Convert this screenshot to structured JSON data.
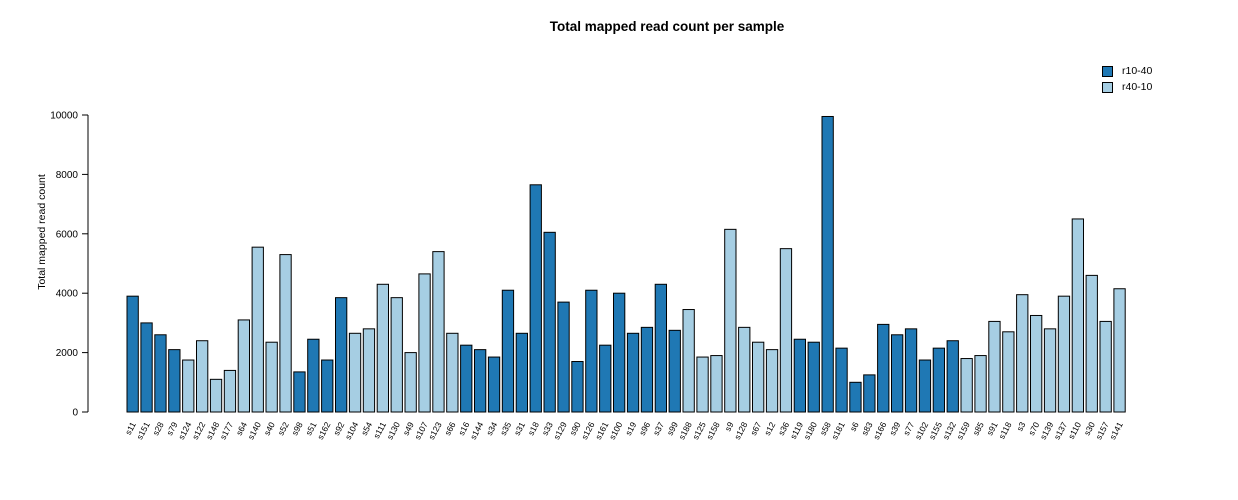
{
  "title": "Total mapped read count per sample",
  "chart_data": {
    "type": "bar",
    "title": "Total mapped read count per sample",
    "xlabel": "",
    "ylabel": "Total mapped read count",
    "ylim": [
      0,
      10000
    ],
    "yticks": [
      0,
      2000,
      4000,
      6000,
      8000,
      10000
    ],
    "grid": false,
    "legend_position": "top-right",
    "legend": [
      {
        "name": "r10-40",
        "color": "#1F78B4"
      },
      {
        "name": "r40-10",
        "color": "#A6CEE3"
      }
    ],
    "bar_border_color": "#000000",
    "bars": [
      {
        "label": "s11",
        "value": 3900,
        "group": "r10-40"
      },
      {
        "label": "s151",
        "value": 3000,
        "group": "r10-40"
      },
      {
        "label": "s28",
        "value": 2600,
        "group": "r10-40"
      },
      {
        "label": "s79",
        "value": 2100,
        "group": "r10-40"
      },
      {
        "label": "s124",
        "value": 1750,
        "group": "r40-10"
      },
      {
        "label": "s122",
        "value": 2400,
        "group": "r40-10"
      },
      {
        "label": "s148",
        "value": 1100,
        "group": "r40-10"
      },
      {
        "label": "s177",
        "value": 1400,
        "group": "r40-10"
      },
      {
        "label": "s64",
        "value": 3100,
        "group": "r40-10"
      },
      {
        "label": "s140",
        "value": 5550,
        "group": "r40-10"
      },
      {
        "label": "s40",
        "value": 2350,
        "group": "r40-10"
      },
      {
        "label": "s52",
        "value": 5300,
        "group": "r40-10"
      },
      {
        "label": "s98",
        "value": 1350,
        "group": "r10-40"
      },
      {
        "label": "s51",
        "value": 2450,
        "group": "r10-40"
      },
      {
        "label": "s162",
        "value": 1750,
        "group": "r10-40"
      },
      {
        "label": "s92",
        "value": 3850,
        "group": "r10-40"
      },
      {
        "label": "s104",
        "value": 2650,
        "group": "r40-10"
      },
      {
        "label": "s54",
        "value": 2800,
        "group": "r40-10"
      },
      {
        "label": "s111",
        "value": 4300,
        "group": "r40-10"
      },
      {
        "label": "s130",
        "value": 3850,
        "group": "r40-10"
      },
      {
        "label": "s49",
        "value": 2000,
        "group": "r40-10"
      },
      {
        "label": "s107",
        "value": 4650,
        "group": "r40-10"
      },
      {
        "label": "s123",
        "value": 5400,
        "group": "r40-10"
      },
      {
        "label": "s66",
        "value": 2650,
        "group": "r40-10"
      },
      {
        "label": "s16",
        "value": 2250,
        "group": "r10-40"
      },
      {
        "label": "s144",
        "value": 2100,
        "group": "r10-40"
      },
      {
        "label": "s34",
        "value": 1850,
        "group": "r10-40"
      },
      {
        "label": "s35",
        "value": 4100,
        "group": "r10-40"
      },
      {
        "label": "s31",
        "value": 2650,
        "group": "r10-40"
      },
      {
        "label": "s18",
        "value": 7650,
        "group": "r10-40"
      },
      {
        "label": "s33",
        "value": 6050,
        "group": "r10-40"
      },
      {
        "label": "s129",
        "value": 3700,
        "group": "r10-40"
      },
      {
        "label": "s90",
        "value": 1700,
        "group": "r10-40"
      },
      {
        "label": "s126",
        "value": 4100,
        "group": "r10-40"
      },
      {
        "label": "s161",
        "value": 2250,
        "group": "r10-40"
      },
      {
        "label": "s100",
        "value": 4000,
        "group": "r10-40"
      },
      {
        "label": "s19",
        "value": 2650,
        "group": "r10-40"
      },
      {
        "label": "s96",
        "value": 2850,
        "group": "r10-40"
      },
      {
        "label": "s37",
        "value": 4300,
        "group": "r10-40"
      },
      {
        "label": "s99",
        "value": 2750,
        "group": "r10-40"
      },
      {
        "label": "s188",
        "value": 3450,
        "group": "r40-10"
      },
      {
        "label": "s125",
        "value": 1850,
        "group": "r40-10"
      },
      {
        "label": "s158",
        "value": 1900,
        "group": "r40-10"
      },
      {
        "label": "s9",
        "value": 6150,
        "group": "r40-10"
      },
      {
        "label": "s128",
        "value": 2850,
        "group": "r40-10"
      },
      {
        "label": "s67",
        "value": 2350,
        "group": "r40-10"
      },
      {
        "label": "s12",
        "value": 2100,
        "group": "r40-10"
      },
      {
        "label": "s36",
        "value": 5500,
        "group": "r40-10"
      },
      {
        "label": "s119",
        "value": 2450,
        "group": "r10-40"
      },
      {
        "label": "s180",
        "value": 2350,
        "group": "r10-40"
      },
      {
        "label": "s58",
        "value": 9950,
        "group": "r10-40"
      },
      {
        "label": "s181",
        "value": 2150,
        "group": "r10-40"
      },
      {
        "label": "s6",
        "value": 1000,
        "group": "r10-40"
      },
      {
        "label": "s83",
        "value": 1250,
        "group": "r10-40"
      },
      {
        "label": "s166",
        "value": 2950,
        "group": "r10-40"
      },
      {
        "label": "s39",
        "value": 2600,
        "group": "r10-40"
      },
      {
        "label": "s77",
        "value": 2800,
        "group": "r10-40"
      },
      {
        "label": "s102",
        "value": 1750,
        "group": "r10-40"
      },
      {
        "label": "s155",
        "value": 2150,
        "group": "r10-40"
      },
      {
        "label": "s132",
        "value": 2400,
        "group": "r10-40"
      },
      {
        "label": "s159",
        "value": 1800,
        "group": "r40-10"
      },
      {
        "label": "s85",
        "value": 1900,
        "group": "r40-10"
      },
      {
        "label": "s91",
        "value": 3050,
        "group": "r40-10"
      },
      {
        "label": "s118",
        "value": 2700,
        "group": "r40-10"
      },
      {
        "label": "s3",
        "value": 3950,
        "group": "r40-10"
      },
      {
        "label": "s70",
        "value": 3250,
        "group": "r40-10"
      },
      {
        "label": "s139",
        "value": 2800,
        "group": "r40-10"
      },
      {
        "label": "s137",
        "value": 3900,
        "group": "r40-10"
      },
      {
        "label": "s110",
        "value": 6500,
        "group": "r40-10"
      },
      {
        "label": "s30",
        "value": 4600,
        "group": "r40-10"
      },
      {
        "label": "s157",
        "value": 3050,
        "group": "r40-10"
      },
      {
        "label": "s141",
        "value": 4150,
        "group": "r40-10"
      }
    ]
  }
}
